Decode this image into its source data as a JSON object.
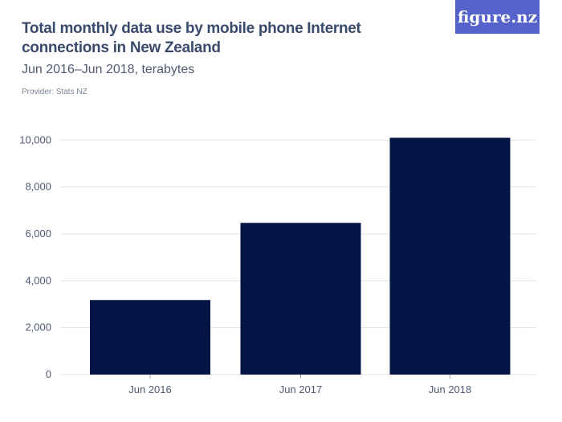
{
  "header": {
    "title": "Total monthly data use by mobile phone Internet connections in New Zealand",
    "subtitle": "Jun 2016–Jun 2018, terabytes",
    "provider": "Provider: Stats NZ",
    "logo": "figure.nz"
  },
  "colors": {
    "bar": "#041445",
    "grid": "#e3e3e3",
    "logo": "#5462c9"
  },
  "chart_data": {
    "type": "bar",
    "title": "Total monthly data use by mobile phone Internet connections in New Zealand",
    "subtitle": "Jun 2016–Jun 2018, terabytes",
    "categories": [
      "Jun 2016",
      "Jun 2017",
      "Jun 2018"
    ],
    "values": [
      3180,
      6470,
      10100
    ],
    "ylim": [
      0,
      10000
    ],
    "yticks": [
      0,
      2000,
      4000,
      6000,
      8000,
      10000
    ],
    "ytick_labels": [
      "0",
      "2,000",
      "4,000",
      "6,000",
      "8,000",
      "10,000"
    ],
    "grid": true,
    "xlabel": "",
    "ylabel": ""
  }
}
